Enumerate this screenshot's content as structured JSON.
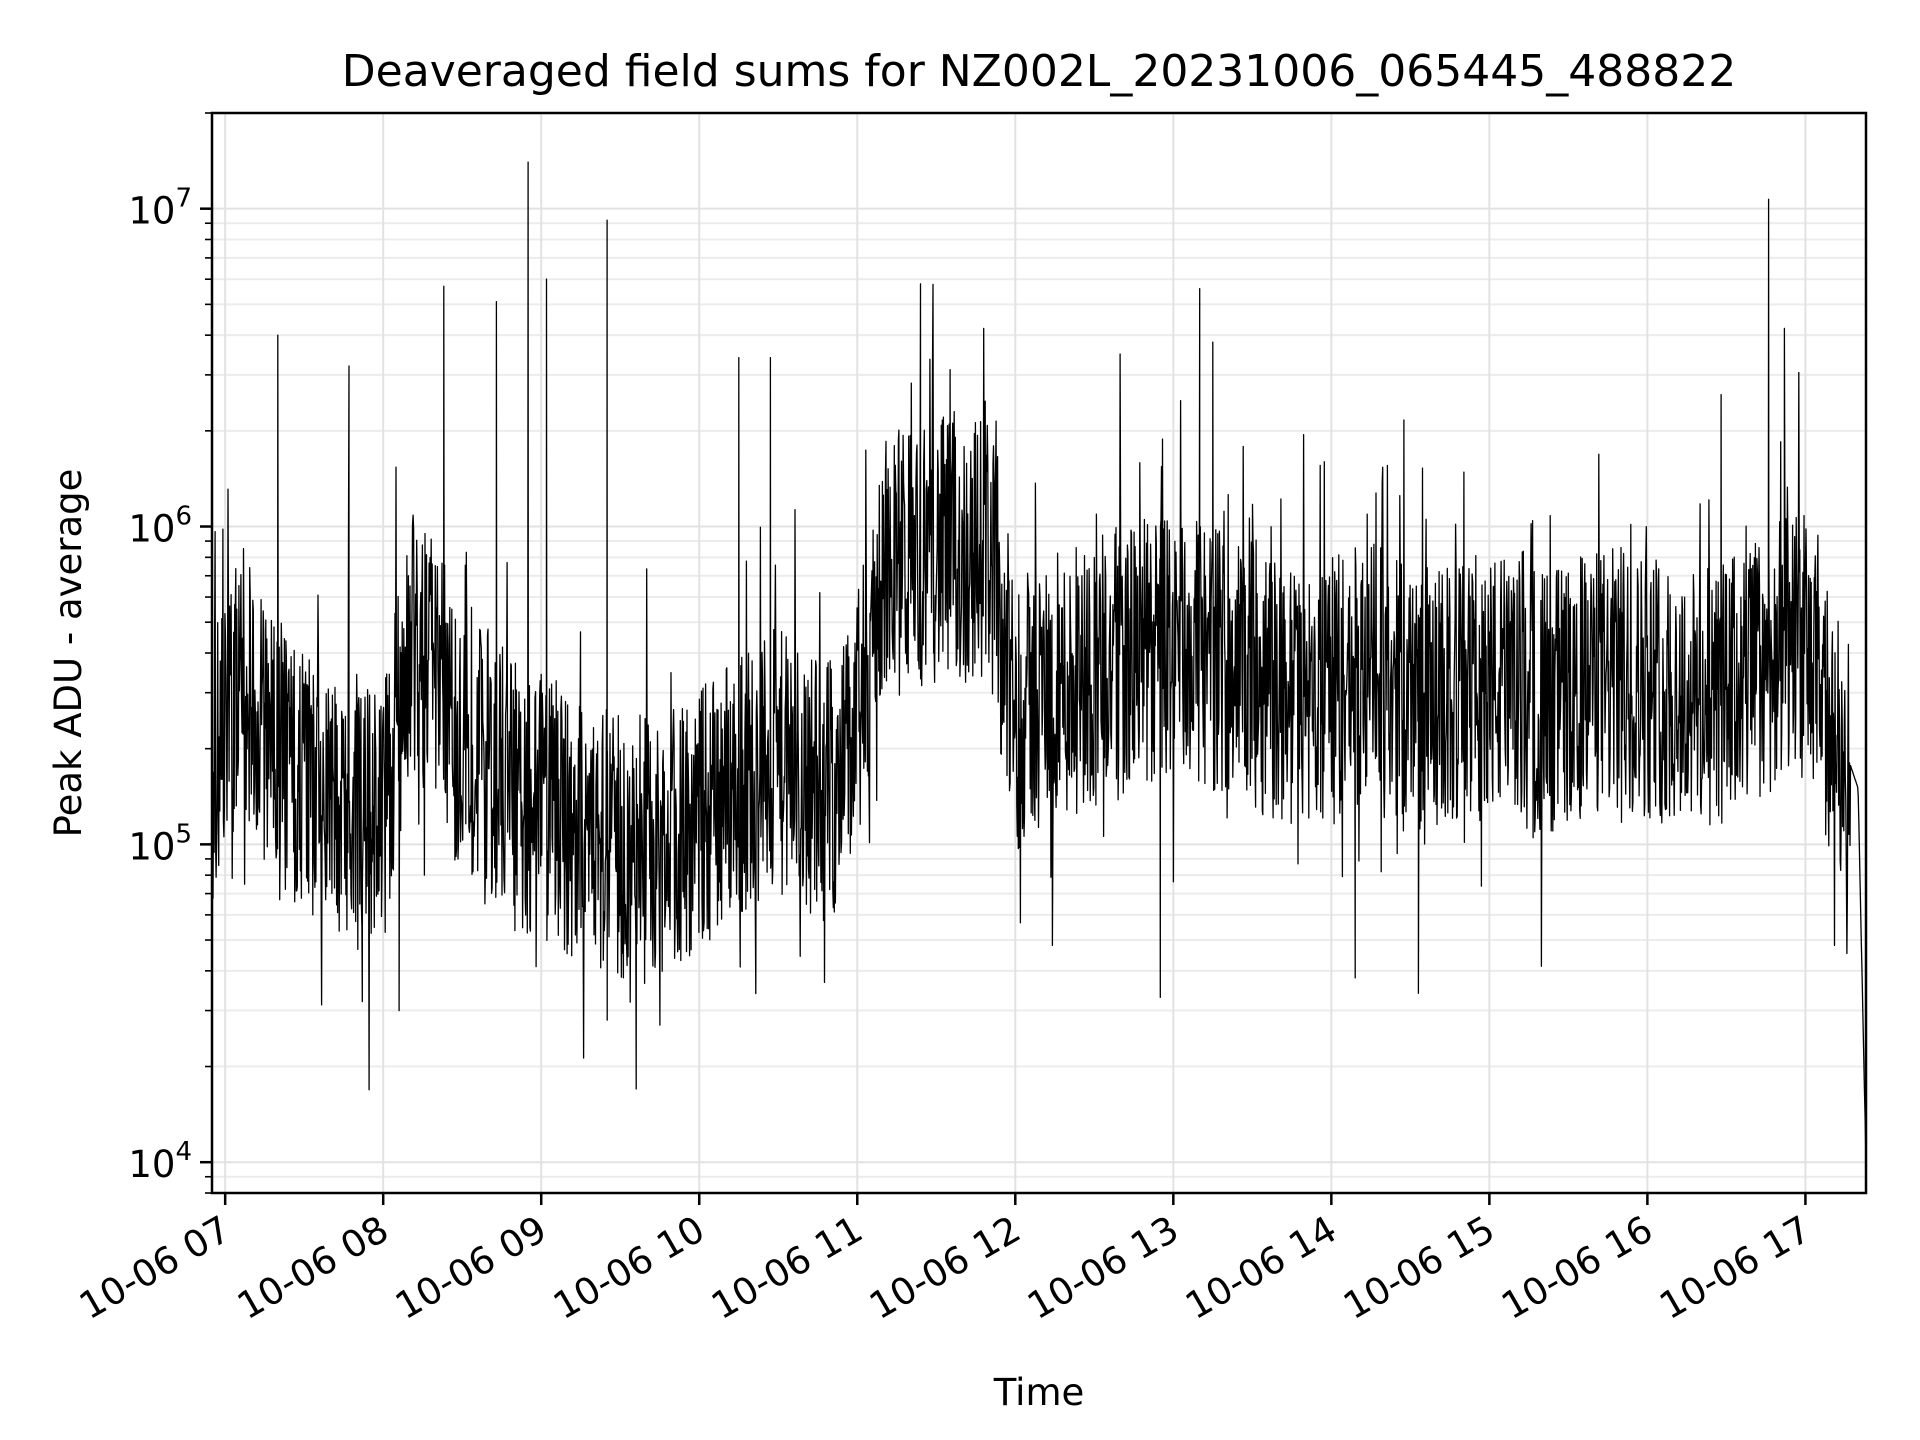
{
  "chart_data": {
    "type": "line",
    "title": "Deaveraged field sums for NZ002L_20231006_065445_488822",
    "xlabel": "Time",
    "ylabel": "Peak ADU - average",
    "yscale": "log",
    "ylim": [
      8000,
      20000000
    ],
    "xlim": [
      "10-06 06:55",
      "10-06 17:23"
    ],
    "grid": true,
    "x_ticks": [
      "10-06 07",
      "10-06 08",
      "10-06 09",
      "10-06 10",
      "10-06 11",
      "10-06 12",
      "10-06 13",
      "10-06 14",
      "10-06 15",
      "10-06 16",
      "10-06 17"
    ],
    "y_ticks": [
      {
        "value": 10000,
        "base": "10",
        "exp": "4"
      },
      {
        "value": 100000,
        "base": "10",
        "exp": "5"
      },
      {
        "value": 1000000,
        "base": "10",
        "exp": "6"
      },
      {
        "value": 10000000,
        "base": "10",
        "exp": "7"
      }
    ],
    "line_color": "#000000",
    "series": [
      {
        "x": [
          "10-06 06:55",
          "10-06 07:00",
          "10-06 07:10",
          "10-06 07:20",
          "10-06 07:30",
          "10-06 07:40",
          "10-06 07:50",
          "10-06 08:00",
          "10-06 08:10",
          "10-06 08:20",
          "10-06 08:30",
          "10-06 08:40",
          "10-06 08:50",
          "10-06 09:00",
          "10-06 09:10",
          "10-06 09:20",
          "10-06 09:30",
          "10-06 09:40",
          "10-06 09:50",
          "10-06 10:00",
          "10-06 10:10",
          "10-06 10:20",
          "10-06 10:30",
          "10-06 10:40",
          "10-06 10:50",
          "10-06 11:00",
          "10-06 11:10",
          "10-06 11:20",
          "10-06 11:30",
          "10-06 11:40",
          "10-06 11:50",
          "10-06 12:00",
          "10-06 12:10",
          "10-06 12:20",
          "10-06 12:30",
          "10-06 12:40",
          "10-06 12:50",
          "10-06 13:00",
          "10-06 13:10",
          "10-06 13:20",
          "10-06 13:30",
          "10-06 13:40",
          "10-06 13:50",
          "10-06 14:00",
          "10-06 14:10",
          "10-06 14:20",
          "10-06 14:30",
          "10-06 14:40",
          "10-06 14:50",
          "10-06 15:00",
          "10-06 15:10",
          "10-06 15:20",
          "10-06 15:30",
          "10-06 15:40",
          "10-06 15:50",
          "10-06 16:00",
          "10-06 16:10",
          "10-06 16:20",
          "10-06 16:30",
          "10-06 16:40",
          "10-06 16:50",
          "10-06 17:00",
          "10-06 17:10",
          "10-06 17:15",
          "10-06 17:20",
          "10-06 17:23"
        ],
        "y": [
          150000,
          300000,
          280000,
          180000,
          150000,
          140000,
          130000,
          120000,
          450000,
          350000,
          200000,
          180000,
          140000,
          130000,
          120000,
          110000,
          100000,
          95000,
          105000,
          120000,
          150000,
          170000,
          180000,
          160000,
          150000,
          220000,
          750000,
          800000,
          850000,
          800000,
          900000,
          250000,
          300000,
          320000,
          350000,
          380000,
          400000,
          420000,
          400000,
          380000,
          350000,
          300000,
          280000,
          300000,
          350000,
          320000,
          300000,
          280000,
          300000,
          320000,
          300000,
          280000,
          300000,
          320000,
          330000,
          320000,
          300000,
          280000,
          300000,
          350000,
          400000,
          420000,
          220000,
          200000,
          150000,
          10000
        ]
      }
    ],
    "spikes": [
      {
        "x": "10-06 07:20",
        "y": 4000000
      },
      {
        "x": "10-06 07:47",
        "y": 3200000
      },
      {
        "x": "10-06 08:23",
        "y": 5700000
      },
      {
        "x": "10-06 08:43",
        "y": 5100000
      },
      {
        "x": "10-06 08:55",
        "y": 14000000
      },
      {
        "x": "10-06 09:02",
        "y": 6000000
      },
      {
        "x": "10-06 09:25",
        "y": 9200000
      },
      {
        "x": "10-06 10:15",
        "y": 3400000
      },
      {
        "x": "10-06 10:27",
        "y": 3400000
      },
      {
        "x": "10-06 11:24",
        "y": 5800000
      },
      {
        "x": "10-06 13:10",
        "y": 5600000
      },
      {
        "x": "10-06 13:15",
        "y": 3800000
      },
      {
        "x": "10-06 16:28",
        "y": 2600000
      },
      {
        "x": "10-06 16:46",
        "y": 10700000
      },
      {
        "x": "10-06 16:52",
        "y": 4200000
      }
    ],
    "dips": [
      {
        "x": "10-06 07:52",
        "y": 32000
      },
      {
        "x": "10-06 08:06",
        "y": 30000
      },
      {
        "x": "10-06 09:25",
        "y": 28000
      },
      {
        "x": "10-06 09:36",
        "y": 17000
      },
      {
        "x": "10-06 09:45",
        "y": 27000
      },
      {
        "x": "10-06 12:55",
        "y": 33000
      },
      {
        "x": "10-06 14:09",
        "y": 38000
      },
      {
        "x": "10-06 14:33",
        "y": 34000
      }
    ]
  }
}
